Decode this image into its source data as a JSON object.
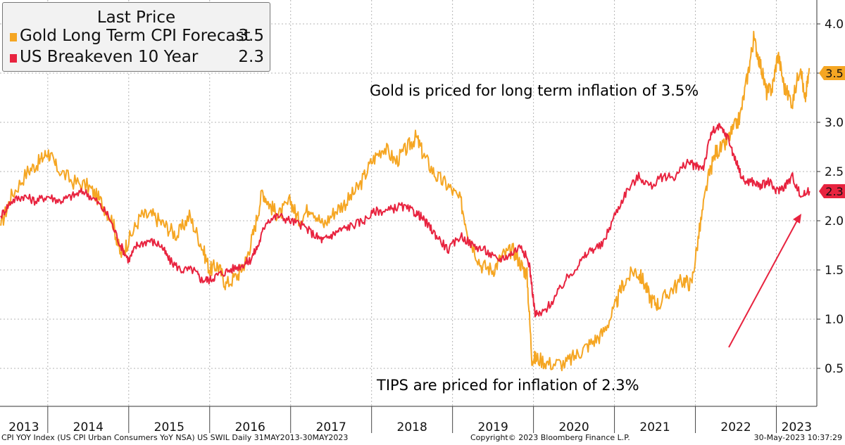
{
  "chart_data": {
    "type": "line",
    "title": "",
    "legend": {
      "title": "Last Price",
      "placement": "top-left"
    },
    "series": [
      {
        "name": "Gold Long Term CPI Forecast",
        "last_value": "3.5",
        "color": "#f5a623",
        "points": [
          [
            2013.42,
            1.95
          ],
          [
            2013.55,
            2.25
          ],
          [
            2013.75,
            2.5
          ],
          [
            2013.9,
            2.6
          ],
          [
            2014.0,
            2.7
          ],
          [
            2014.1,
            2.55
          ],
          [
            2014.3,
            2.4
          ],
          [
            2014.5,
            2.35
          ],
          [
            2014.65,
            2.2
          ],
          [
            2014.8,
            2.0
          ],
          [
            2014.9,
            1.65
          ],
          [
            2015.0,
            1.8
          ],
          [
            2015.15,
            2.05
          ],
          [
            2015.3,
            2.05
          ],
          [
            2015.45,
            1.95
          ],
          [
            2015.6,
            1.85
          ],
          [
            2015.75,
            2.05
          ],
          [
            2015.9,
            1.75
          ],
          [
            2016.0,
            1.5
          ],
          [
            2016.1,
            1.55
          ],
          [
            2016.2,
            1.35
          ],
          [
            2016.35,
            1.45
          ],
          [
            2016.45,
            1.6
          ],
          [
            2016.55,
            1.9
          ],
          [
            2016.65,
            2.3
          ],
          [
            2016.75,
            2.15
          ],
          [
            2016.85,
            2.05
          ],
          [
            2017.0,
            2.2
          ],
          [
            2017.1,
            2.0
          ],
          [
            2017.25,
            2.15
          ],
          [
            2017.4,
            1.95
          ],
          [
            2017.55,
            2.1
          ],
          [
            2017.7,
            2.2
          ],
          [
            2017.85,
            2.35
          ],
          [
            2018.0,
            2.6
          ],
          [
            2018.15,
            2.75
          ],
          [
            2018.3,
            2.6
          ],
          [
            2018.45,
            2.75
          ],
          [
            2018.55,
            2.85
          ],
          [
            2018.65,
            2.65
          ],
          [
            2018.8,
            2.45
          ],
          [
            2018.95,
            2.35
          ],
          [
            2019.1,
            2.2
          ],
          [
            2019.2,
            1.85
          ],
          [
            2019.35,
            1.55
          ],
          [
            2019.5,
            1.5
          ],
          [
            2019.62,
            1.65
          ],
          [
            2019.75,
            1.7
          ],
          [
            2019.85,
            1.55
          ],
          [
            2019.92,
            1.45
          ],
          [
            2019.98,
            0.6
          ],
          [
            2020.05,
            0.6
          ],
          [
            2020.2,
            0.55
          ],
          [
            2020.4,
            0.55
          ],
          [
            2020.55,
            0.65
          ],
          [
            2020.7,
            0.75
          ],
          [
            2020.85,
            0.85
          ],
          [
            2021.0,
            1.1
          ],
          [
            2021.1,
            1.35
          ],
          [
            2021.25,
            1.5
          ],
          [
            2021.35,
            1.4
          ],
          [
            2021.45,
            1.2
          ],
          [
            2021.55,
            1.15
          ],
          [
            2021.7,
            1.3
          ],
          [
            2021.85,
            1.4
          ],
          [
            2021.95,
            1.35
          ],
          [
            2022.05,
            1.9
          ],
          [
            2022.15,
            2.4
          ],
          [
            2022.25,
            2.7
          ],
          [
            2022.35,
            2.75
          ],
          [
            2022.45,
            2.9
          ],
          [
            2022.55,
            3.05
          ],
          [
            2022.65,
            3.5
          ],
          [
            2022.72,
            3.85
          ],
          [
            2022.8,
            3.6
          ],
          [
            2022.88,
            3.3
          ],
          [
            2022.95,
            3.35
          ],
          [
            2023.02,
            3.7
          ],
          [
            2023.1,
            3.35
          ],
          [
            2023.2,
            3.2
          ],
          [
            2023.3,
            3.6
          ],
          [
            2023.35,
            3.2
          ],
          [
            2023.41,
            3.55
          ]
        ]
      },
      {
        "name": "US Breakeven 10 Year",
        "last_value": "2.3",
        "color": "#e8233f",
        "points": [
          [
            2013.42,
            2.05
          ],
          [
            2013.55,
            2.2
          ],
          [
            2013.7,
            2.25
          ],
          [
            2013.85,
            2.2
          ],
          [
            2014.0,
            2.25
          ],
          [
            2014.15,
            2.2
          ],
          [
            2014.3,
            2.25
          ],
          [
            2014.45,
            2.3
          ],
          [
            2014.6,
            2.2
          ],
          [
            2014.75,
            2.05
          ],
          [
            2014.9,
            1.75
          ],
          [
            2015.0,
            1.6
          ],
          [
            2015.1,
            1.75
          ],
          [
            2015.25,
            1.8
          ],
          [
            2015.4,
            1.75
          ],
          [
            2015.5,
            1.6
          ],
          [
            2015.65,
            1.5
          ],
          [
            2015.8,
            1.5
          ],
          [
            2015.9,
            1.4
          ],
          [
            2016.0,
            1.4
          ],
          [
            2016.1,
            1.45
          ],
          [
            2016.25,
            1.5
          ],
          [
            2016.4,
            1.55
          ],
          [
            2016.5,
            1.6
          ],
          [
            2016.6,
            1.75
          ],
          [
            2016.7,
            2.0
          ],
          [
            2016.85,
            2.05
          ],
          [
            2017.0,
            2.0
          ],
          [
            2017.15,
            1.95
          ],
          [
            2017.3,
            1.85
          ],
          [
            2017.4,
            1.8
          ],
          [
            2017.5,
            1.85
          ],
          [
            2017.6,
            1.9
          ],
          [
            2017.75,
            1.95
          ],
          [
            2017.9,
            2.0
          ],
          [
            2018.05,
            2.1
          ],
          [
            2018.2,
            2.1
          ],
          [
            2018.35,
            2.15
          ],
          [
            2018.5,
            2.1
          ],
          [
            2018.6,
            2.05
          ],
          [
            2018.7,
            1.95
          ],
          [
            2018.8,
            1.85
          ],
          [
            2018.95,
            1.7
          ],
          [
            2019.1,
            1.85
          ],
          [
            2019.25,
            1.75
          ],
          [
            2019.4,
            1.7
          ],
          [
            2019.55,
            1.6
          ],
          [
            2019.7,
            1.65
          ],
          [
            2019.85,
            1.75
          ],
          [
            2019.95,
            1.55
          ],
          [
            2020.02,
            1.05
          ],
          [
            2020.1,
            1.05
          ],
          [
            2020.25,
            1.2
          ],
          [
            2020.4,
            1.4
          ],
          [
            2020.55,
            1.55
          ],
          [
            2020.7,
            1.7
          ],
          [
            2020.85,
            1.75
          ],
          [
            2021.0,
            2.05
          ],
          [
            2021.15,
            2.3
          ],
          [
            2021.3,
            2.45
          ],
          [
            2021.45,
            2.35
          ],
          [
            2021.6,
            2.45
          ],
          [
            2021.75,
            2.45
          ],
          [
            2021.9,
            2.6
          ],
          [
            2022.0,
            2.55
          ],
          [
            2022.1,
            2.55
          ],
          [
            2022.2,
            2.9
          ],
          [
            2022.3,
            2.95
          ],
          [
            2022.4,
            2.85
          ],
          [
            2022.5,
            2.6
          ],
          [
            2022.6,
            2.4
          ],
          [
            2022.7,
            2.4
          ],
          [
            2022.8,
            2.35
          ],
          [
            2022.9,
            2.4
          ],
          [
            2023.0,
            2.3
          ],
          [
            2023.1,
            2.35
          ],
          [
            2023.2,
            2.45
          ],
          [
            2023.3,
            2.25
          ],
          [
            2023.41,
            2.3
          ]
        ]
      }
    ],
    "x_range": [
      2013.41,
      2023.5
    ],
    "ylim": [
      0.3,
      4.15
    ],
    "y_ticks": [
      "0.5",
      "1.0",
      "1.5",
      "2.0",
      "2.5",
      "3.0",
      "3.5",
      "4.0"
    ],
    "x_tick_labels": [
      "2013",
      "2014",
      "2015",
      "2016",
      "2017",
      "2018",
      "2019",
      "2020",
      "2021",
      "2022",
      "2023"
    ],
    "y_axis_position": "right",
    "grid": true,
    "annotations": {
      "gold": "Gold is priced for long term inflation of 3.5%",
      "tips": "TIPS are priced for inflation of 2.3%"
    }
  },
  "footer": {
    "left": "CPI YOY Index (US CPI Urban Consumers YoY NSA) US SWIL  Daily 31MAY2013-30MAY2023",
    "center": "Copyright© 2023 Bloomberg Finance L.P.",
    "right": "30-May-2023 10:37:29"
  }
}
